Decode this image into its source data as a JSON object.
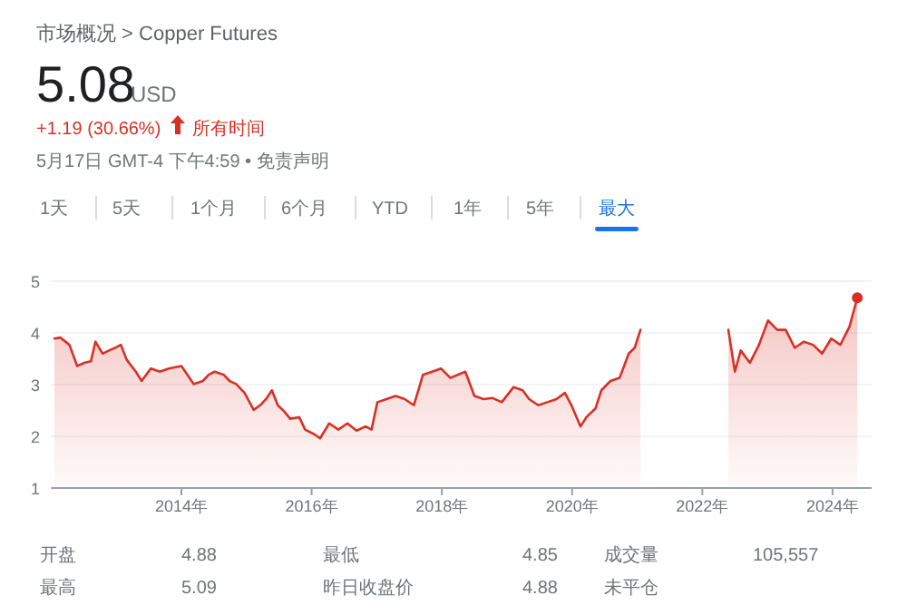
{
  "chart_data": {
    "type": "area",
    "title": "市场概况 > Copper Futures",
    "annotations": [
      "5.08",
      "USD",
      "+1.19 (30.66%)",
      "所有时间",
      "5月17日 GMT-4 下午4:59 • 免责声明",
      "1天",
      "5天",
      "1个月",
      "6个月",
      "YTD",
      "1年",
      "5年",
      "最大",
      "开盘",
      "4.88",
      "最低",
      "4.85",
      "成交量",
      "105,557",
      "最高",
      "5.09",
      "昨日收盘价",
      "4.88",
      "未平仓"
    ],
    "xlim": [
      2012,
      2024.6
    ],
    "xticks": [
      {
        "value": 2014,
        "label": "2014年"
      },
      {
        "value": 2016,
        "label": "2016年"
      },
      {
        "value": 2018,
        "label": "2018年"
      },
      {
        "value": 2020,
        "label": "2020年"
      },
      {
        "value": 2022,
        "label": "2022年"
      },
      {
        "value": 2024,
        "label": "2024年"
      }
    ],
    "ylim": [
      1,
      5
    ],
    "yticks": [
      1,
      2,
      3,
      4,
      5
    ],
    "grid": "y",
    "series": [
      {
        "color": "#d93025",
        "x": [
          2012.05,
          2012.14,
          2012.28,
          2012.4,
          2012.51,
          2012.61,
          2012.68,
          2012.79,
          2012.89,
          2012.98,
          2013.07,
          2013.16,
          2013.3,
          2013.39,
          2013.53,
          2013.67,
          2013.81,
          2014,
          2014.19,
          2014.33,
          2014.42,
          2014.51,
          2014.65,
          2014.74,
          2014.84,
          2014.97,
          2015.11,
          2015.21,
          2015.3,
          2015.39,
          2015.48,
          2015.58,
          2015.67,
          2015.81,
          2015.9,
          2016.04,
          2016.13,
          2016.27,
          2016.41,
          2016.55,
          2016.69,
          2016.83,
          2016.92,
          2017.01,
          2017.15,
          2017.29,
          2017.43,
          2017.57,
          2017.71,
          2017.85,
          2017.99,
          2018.13,
          2018.36,
          2018.5,
          2018.64,
          2018.78,
          2018.92,
          2019.1,
          2019.24,
          2019.34,
          2019.48,
          2019.62,
          2019.76,
          2019.89,
          2019.99,
          2020.13,
          2020.22,
          2020.36,
          2020.45,
          2020.59,
          2020.73,
          2020.87,
          2020.96,
          2021.05,
          2021.7,
          2022.4,
          2022.5,
          2022.59,
          2022.73,
          2022.87,
          2023.01,
          2023.15,
          2023.28,
          2023.42,
          2023.56,
          2023.7,
          2023.84,
          2023.98,
          2024.12,
          2024.26,
          2024.38
        ],
        "values": [
          3.89,
          3.91,
          3.77,
          3.36,
          3.42,
          3.45,
          3.83,
          3.6,
          3.66,
          3.71,
          3.77,
          3.48,
          3.25,
          3.07,
          3.31,
          3.25,
          3.31,
          3.36,
          3.01,
          3.07,
          3.19,
          3.25,
          3.19,
          3.07,
          3.01,
          2.84,
          2.51,
          2.6,
          2.72,
          2.89,
          2.6,
          2.48,
          2.34,
          2.37,
          2.13,
          2.04,
          1.96,
          2.25,
          2.13,
          2.25,
          2.11,
          2.19,
          2.13,
          2.66,
          2.72,
          2.78,
          2.72,
          2.6,
          3.19,
          3.25,
          3.31,
          3.13,
          3.25,
          2.78,
          2.72,
          2.74,
          2.66,
          2.95,
          2.89,
          2.72,
          2.6,
          2.66,
          2.72,
          2.84,
          2.6,
          2.19,
          2.37,
          2.54,
          2.89,
          3.07,
          3.13,
          3.6,
          3.71,
          4.06,
          null,
          4.06,
          3.25,
          3.66,
          3.42,
          3.77,
          4.24,
          4.06,
          4.06,
          3.71,
          3.83,
          3.77,
          3.6,
          3.89,
          3.77,
          4.12,
          4.68
        ]
      }
    ]
  }
}
